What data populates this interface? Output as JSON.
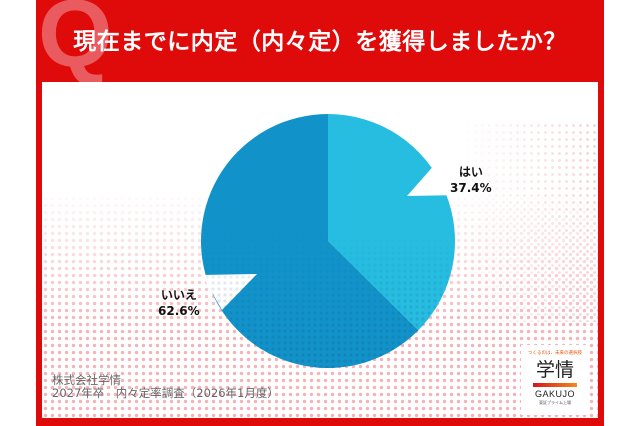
{
  "header": {
    "q_mark": "Q",
    "title": "現在までに内定（内々定）を獲得しましたか？"
  },
  "chart_data": {
    "type": "pie",
    "title": "現在までに内定（内々定）を獲得しましたか？",
    "categories": [
      "はい",
      "いいえ"
    ],
    "values": [
      37.4,
      62.6
    ],
    "unit": "%",
    "colors": [
      "#26bde0",
      "#1193c9"
    ],
    "start_angle": "12 o'clock, clockwise",
    "labels": [
      {
        "name": "はい",
        "value_text": "37.4%"
      },
      {
        "name": "いいえ",
        "value_text": "62.6%"
      }
    ]
  },
  "footer": {
    "company": "株式会社学情",
    "survey": "2027年卒　内々定率調査（2026年1月度）"
  },
  "logo": {
    "tagline": "つくるのは、未来の選択肢",
    "kanji": "学情",
    "roman": "GAKUJO",
    "sub": "東証プライム上場"
  },
  "colors": {
    "frame_red": "#df0a0a",
    "q_mark": "#ea5b5f",
    "slice_yes": "#26bde0",
    "slice_no": "#1193c9",
    "dots": "#f4a6ab"
  }
}
